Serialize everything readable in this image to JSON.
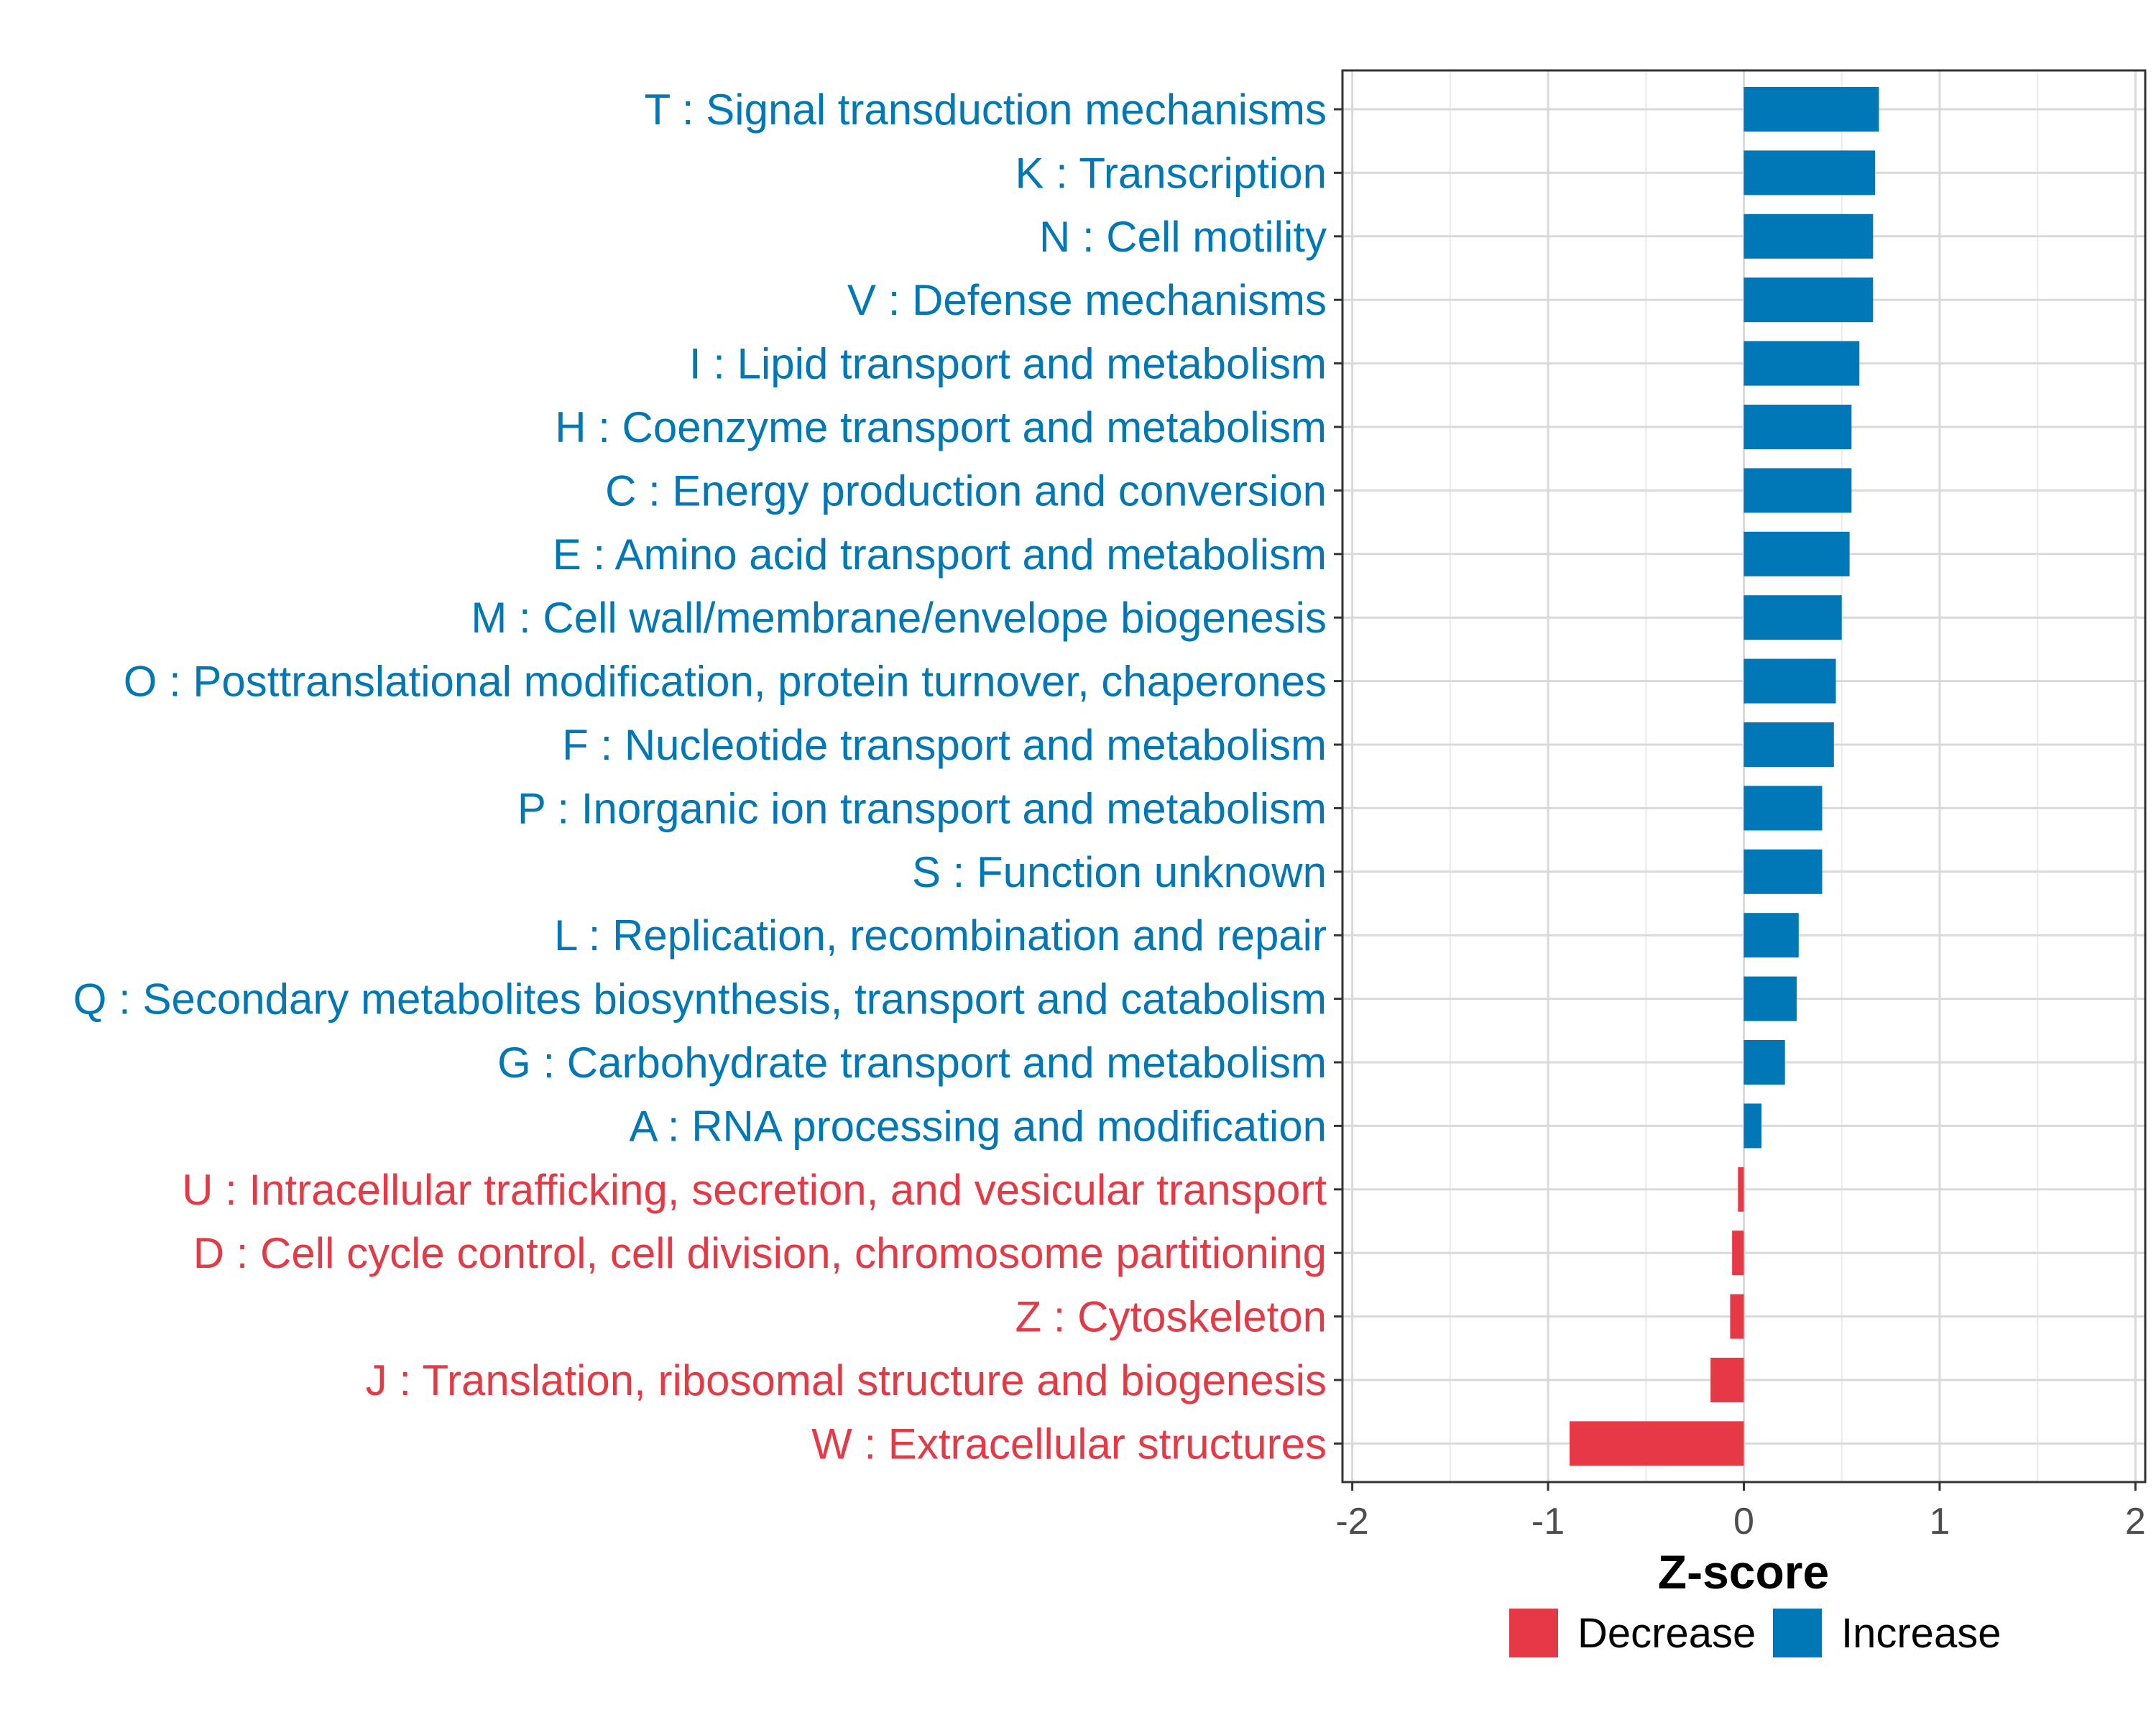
{
  "chart_data": {
    "type": "bar",
    "orientation": "horizontal",
    "title": "",
    "xlabel": "Z-score",
    "ylabel": "",
    "xlim": [
      -2.05,
      2.05
    ],
    "xticks": [
      -2,
      -1,
      0,
      1,
      2
    ],
    "xtick_labels": [
      "-2",
      "-1",
      "0",
      "1",
      "2"
    ],
    "grid": true,
    "legend_position": "bottom",
    "colors": {
      "Decrease": "#e63946",
      "Increase": "#0077b6"
    },
    "legend": [
      {
        "name": "Decrease",
        "color": "#e63946"
      },
      {
        "name": "Increase",
        "color": "#0077b6"
      }
    ],
    "categories": [
      "T : Signal transduction mechanisms",
      "K : Transcription",
      "N : Cell motility",
      "V : Defense mechanisms",
      "I : Lipid transport and metabolism",
      "H : Coenzyme transport and metabolism",
      "C : Energy production and conversion",
      "E : Amino acid transport and metabolism",
      "M : Cell wall/membrane/envelope biogenesis",
      "O : Posttranslational modification, protein turnover, chaperones",
      "F : Nucleotide transport and metabolism",
      "P : Inorganic ion transport and metabolism",
      "S : Function unknown",
      "L : Replication, recombination and repair",
      "Q : Secondary metabolites biosynthesis, transport and catabolism",
      "G : Carbohydrate transport and metabolism",
      "A : RNA processing and modification",
      "U : Intracellular trafficking, secretion, and vesicular transport",
      "D : Cell cycle control, cell division, chromosome partitioning",
      "Z : Cytoskeleton",
      "J : Translation, ribosomal structure and biogenesis",
      "W : Extracellular structures"
    ],
    "values": [
      0.69,
      0.67,
      0.66,
      0.66,
      0.59,
      0.55,
      0.55,
      0.54,
      0.5,
      0.47,
      0.46,
      0.4,
      0.4,
      0.28,
      0.27,
      0.21,
      0.09,
      -0.03,
      -0.06,
      -0.07,
      -0.17,
      -0.89
    ],
    "groups": [
      "Increase",
      "Increase",
      "Increase",
      "Increase",
      "Increase",
      "Increase",
      "Increase",
      "Increase",
      "Increase",
      "Increase",
      "Increase",
      "Increase",
      "Increase",
      "Increase",
      "Increase",
      "Increase",
      "Increase",
      "Decrease",
      "Decrease",
      "Decrease",
      "Decrease",
      "Decrease"
    ]
  }
}
